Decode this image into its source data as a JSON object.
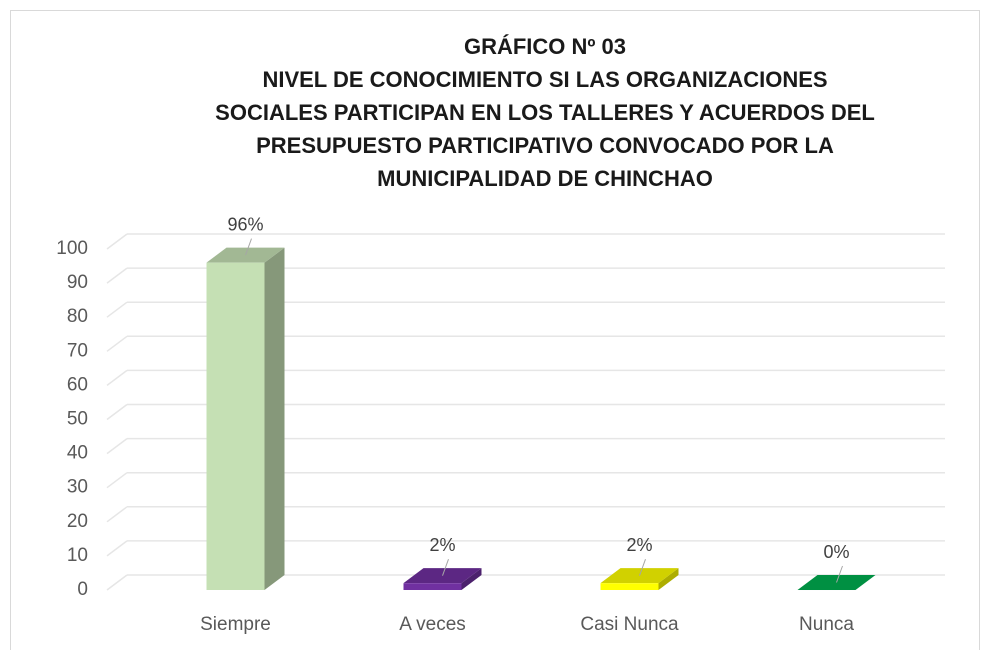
{
  "chart_data": {
    "type": "bar3d",
    "title": [
      "GRÁFICO Nº 03",
      "NIVEL DE CONOCIMIENTO SI LAS ORGANIZACIONES",
      "SOCIALES PARTICIPAN EN LOS TALLERES Y ACUERDOS DEL",
      "PRESUPUESTO PARTICIPATIVO CONVOCADO POR LA",
      "MUNICIPALIDAD DE CHINCHAO"
    ],
    "categories": [
      "Siempre",
      "A veces",
      "Casi Nunca",
      "Nunca"
    ],
    "values": [
      96,
      2,
      2,
      0
    ],
    "value_labels": [
      "96%",
      "2%",
      "2%",
      "0%"
    ],
    "colors": [
      "#c5e0b4",
      "#7030a0",
      "#ffff00",
      "#00b050"
    ],
    "ylim": [
      0,
      100
    ],
    "yticks": [
      0,
      10,
      20,
      30,
      40,
      50,
      60,
      70,
      80,
      90,
      100
    ],
    "grid": true
  }
}
